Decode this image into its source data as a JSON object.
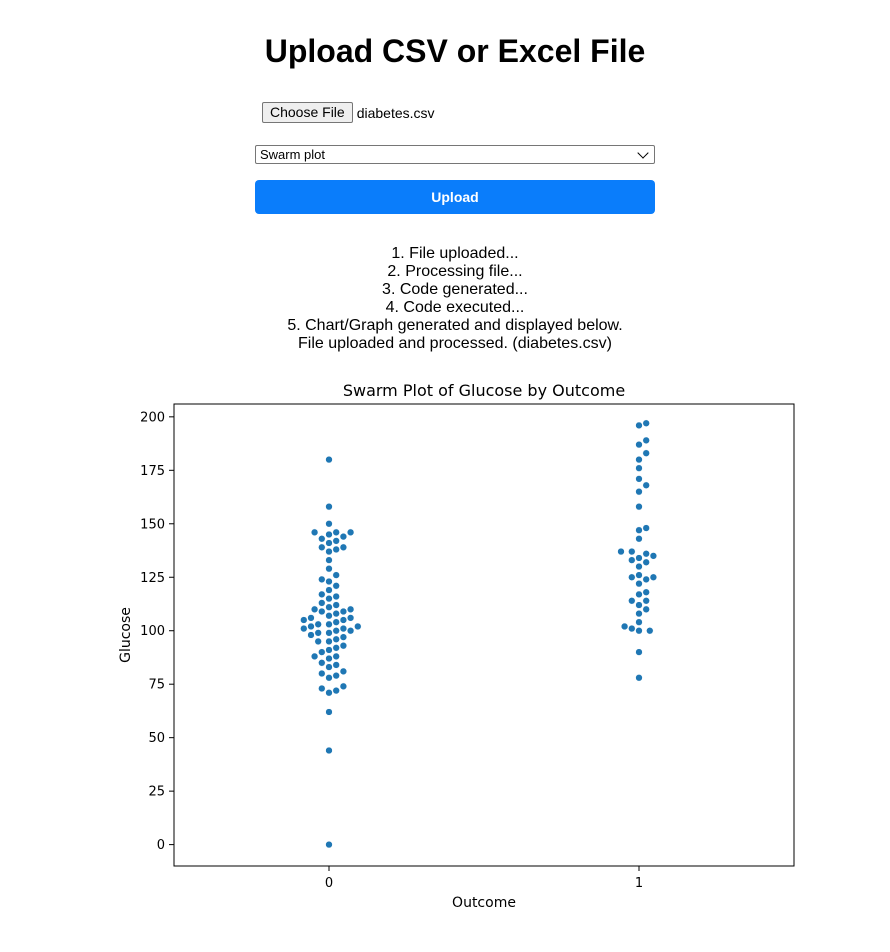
{
  "page": {
    "title": "Upload CSV or Excel File"
  },
  "file_input": {
    "button_label": "Choose File",
    "file_name": "diabetes.csv"
  },
  "chart_select": {
    "selected": "Swarm plot"
  },
  "upload": {
    "label": "Upload"
  },
  "status": {
    "steps": [
      "1. File uploaded...",
      "2. Processing file...",
      "3. Code generated...",
      "4. Code executed...",
      "5. Chart/Graph generated and displayed below.",
      "File uploaded and processed. (diabetes.csv)"
    ]
  },
  "colors": {
    "accent": "#0a7dfb",
    "point": "#1f77b4"
  },
  "chart_data": {
    "type": "scatter",
    "title": "Swarm Plot of Glucose by Outcome",
    "xlabel": "Outcome",
    "ylabel": "Glucose",
    "categories": [
      "0",
      "1"
    ],
    "xlim": [
      -0.5,
      1.5
    ],
    "ylim": [
      -10,
      206
    ],
    "yticks": [
      0,
      25,
      50,
      75,
      100,
      125,
      150,
      175,
      200
    ],
    "grid": false,
    "series": [
      {
        "category": "0",
        "values": [
          0,
          44,
          62,
          71,
          72,
          73,
          74,
          78,
          79,
          80,
          81,
          83,
          84,
          85,
          87,
          88,
          88,
          90,
          91,
          92,
          93,
          95,
          95,
          96,
          97,
          98,
          99,
          99,
          100,
          100,
          101,
          101,
          102,
          102,
          103,
          103,
          104,
          105,
          105,
          106,
          106,
          107,
          108,
          109,
          109,
          110,
          110,
          111,
          112,
          113,
          115,
          116,
          117,
          119,
          121,
          123,
          124,
          126,
          129,
          133,
          137,
          138,
          139,
          139,
          141,
          142,
          143,
          144,
          145,
          146,
          146,
          146,
          150,
          158,
          180
        ]
      },
      {
        "category": "1",
        "values": [
          78,
          90,
          100,
          100,
          101,
          102,
          104,
          108,
          110,
          112,
          114,
          114,
          117,
          118,
          122,
          124,
          125,
          125,
          126,
          130,
          132,
          133,
          134,
          135,
          136,
          137,
          137,
          143,
          147,
          148,
          158,
          165,
          168,
          171,
          176,
          180,
          183,
          187,
          189,
          196,
          197
        ]
      }
    ]
  }
}
